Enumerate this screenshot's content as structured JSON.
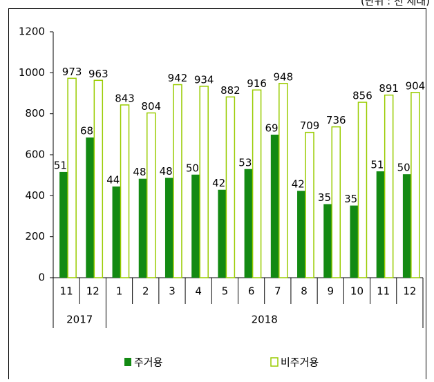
{
  "chart_data": {
    "type": "bar",
    "annotation": "(단위 : 천 세대)",
    "categories": [
      "11",
      "12",
      "1",
      "2",
      "3",
      "4",
      "5",
      "6",
      "7",
      "8",
      "9",
      "10",
      "11",
      "12"
    ],
    "x_groups": [
      "2017",
      "2018"
    ],
    "x_group_sizes": [
      2,
      12
    ],
    "series": [
      {
        "name": "주거용",
        "color": "#138a13",
        "values": [
          516,
          684,
          445,
          483,
          487,
          503,
          429,
          530,
          698,
          424,
          359,
          352,
          519,
          505
        ]
      },
      {
        "name": "비주거용",
        "color": "#99cc00",
        "fill": "#ffffff",
        "values": [
          973,
          963,
          843,
          804,
          942,
          934,
          882,
          916,
          948,
          709,
          736,
          856,
          891,
          904
        ]
      }
    ],
    "ylim": [
      0,
      1200
    ],
    "yticks": [
      0,
      200,
      400,
      600,
      800,
      1000,
      1200
    ],
    "grid": false,
    "legend": "bottom"
  }
}
